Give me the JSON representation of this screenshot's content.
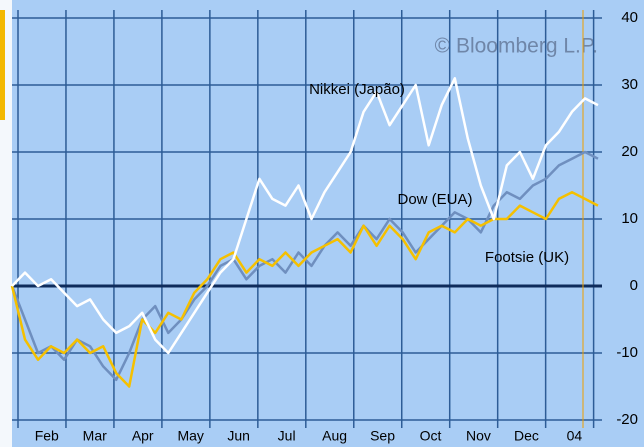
{
  "chart_data": {
    "type": "line",
    "credit": "© Bloomberg L.P.",
    "annotations": [
      "Nikkei (Japão)",
      "Dow (EUA)",
      "Footsie (UK)"
    ],
    "x_labels": [
      "Feb",
      "Mar",
      "Apr",
      "May",
      "Jun",
      "Jul",
      "Aug",
      "Sep",
      "Oct",
      "Nov",
      "Dec",
      "04"
    ],
    "ylim": [
      -20,
      40
    ],
    "yticks": [
      -20,
      -10,
      0,
      10,
      20,
      30,
      40
    ],
    "grid": true,
    "series": [
      {
        "name": "Nikkei (Japão)",
        "color": "#ffffff",
        "values": [
          0,
          2,
          0,
          1,
          -1,
          -3,
          -2,
          -5,
          -7,
          -6,
          -4,
          -8,
          -10,
          -7,
          -4,
          -1,
          2,
          4,
          10,
          16,
          13,
          12,
          15,
          10,
          14,
          17,
          20,
          26,
          29,
          24,
          27,
          30,
          21,
          27,
          31,
          22,
          15,
          10,
          18,
          20,
          16,
          21,
          23,
          26,
          28,
          27
        ]
      },
      {
        "name": "Dow (EUA)",
        "color": "#6f8fbf",
        "values": [
          0,
          -5,
          -10,
          -9,
          -11,
          -8,
          -9,
          -12,
          -14,
          -10,
          -5,
          -3,
          -7,
          -5,
          -2,
          0,
          3,
          4,
          1,
          3,
          4,
          2,
          5,
          3,
          6,
          8,
          6,
          9,
          7,
          10,
          8,
          5,
          7,
          9,
          11,
          10,
          8,
          12,
          14,
          13,
          15,
          16,
          18,
          19,
          20,
          19
        ]
      },
      {
        "name": "Footsie (UK)",
        "color": "#f5c000",
        "values": [
          0,
          -8,
          -11,
          -9,
          -10,
          -8,
          -10,
          -9,
          -13,
          -15,
          -5,
          -7,
          -4,
          -5,
          -1,
          1,
          4,
          5,
          2,
          4,
          3,
          5,
          3,
          5,
          6,
          7,
          5,
          9,
          6,
          9,
          7,
          4,
          8,
          9,
          8,
          10,
          9,
          10,
          10,
          12,
          11,
          10,
          13,
          14,
          13,
          12
        ]
      }
    ]
  }
}
